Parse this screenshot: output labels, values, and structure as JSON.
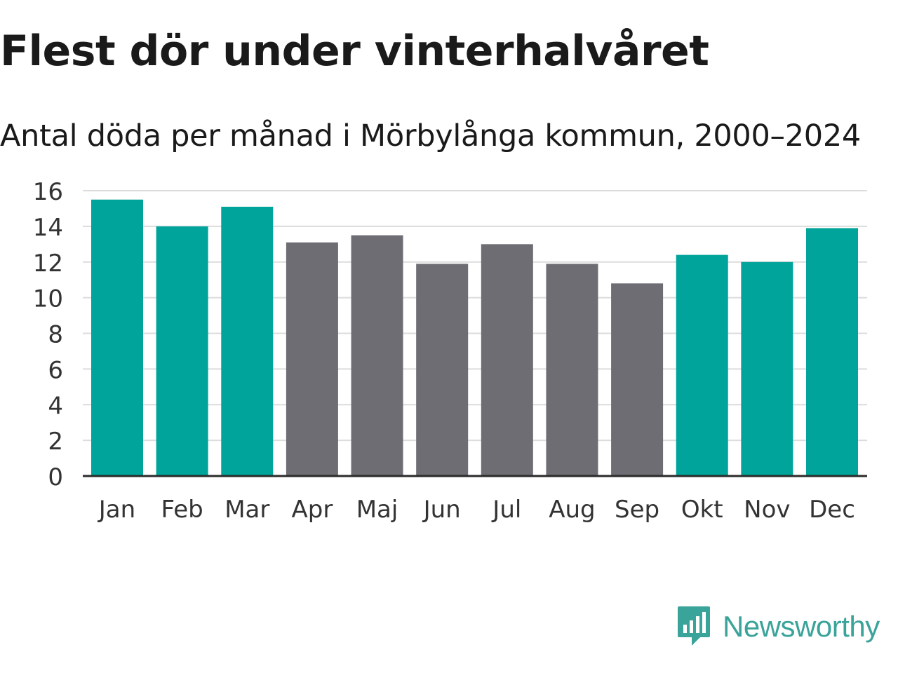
{
  "chart_data": {
    "type": "bar",
    "title": "Flest dör under vinterhalvåret",
    "subtitle": "Antal döda per månad i Mörbylånga kommun, 2000–2024",
    "categories": [
      "Jan",
      "Feb",
      "Mar",
      "Apr",
      "Maj",
      "Jun",
      "Jul",
      "Aug",
      "Sep",
      "Okt",
      "Nov",
      "Dec"
    ],
    "values": [
      15.5,
      14.0,
      15.1,
      13.1,
      13.5,
      11.9,
      13.0,
      11.9,
      10.8,
      12.4,
      12.0,
      13.9
    ],
    "highlight": [
      true,
      true,
      true,
      false,
      false,
      false,
      false,
      false,
      false,
      true,
      true,
      true
    ],
    "yticks": [
      "0",
      "2",
      "4",
      "6",
      "8",
      "10",
      "12",
      "14",
      "16"
    ],
    "ylim": [
      0,
      16
    ],
    "xlabel": "",
    "ylabel": "",
    "grid": true,
    "colors": {
      "winter": "#00a49a",
      "summer": "#6e6d73",
      "grid": "#dcdcdc",
      "axis": "#2b2b2b",
      "tick_text": "#333333"
    }
  },
  "branding": {
    "name": "Newsworthy",
    "color": "#3aa39a",
    "icon": "newsworthy-logo-icon"
  }
}
